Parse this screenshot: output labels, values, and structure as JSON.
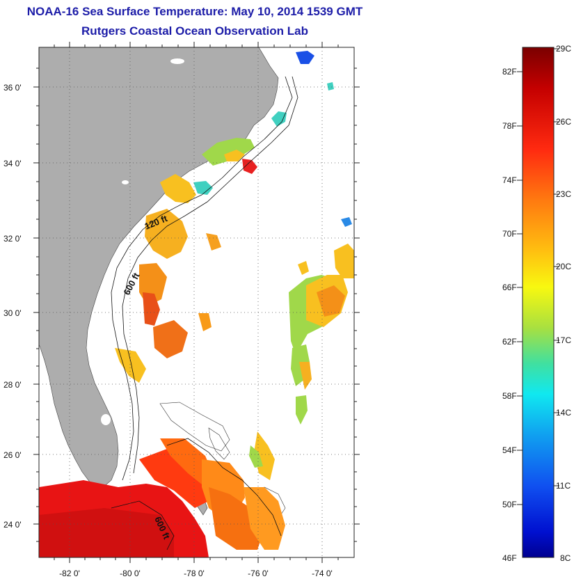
{
  "header": {
    "title": "NOAA-16 Sea Surface Temperature:  May 10, 2014 1539 GMT",
    "subtitle": "Rutgers Coastal Ocean Observation Lab"
  },
  "map": {
    "lat_labels": [
      "36 0'",
      "34 0'",
      "32 0'",
      "30 0'",
      "28 0'",
      "26 0'",
      "24 0'"
    ],
    "lon_labels": [
      "-82 0'",
      "-80 0'",
      "-78 0'",
      "-76 0'",
      "-74 0'"
    ],
    "isobath_labels": [
      "120 ft",
      "600 ft",
      "600 ft"
    ],
    "colors": {
      "land": "#adadad",
      "ocean": "#ffffff",
      "warm": "#e01010",
      "orange": "#f08a18",
      "yellow": "#f6d520",
      "green": "#9ad645",
      "cyan": "#3ad6c8",
      "blue": "#1a50e6"
    }
  },
  "colorbar": {
    "fahrenheit": [
      "82F",
      "78F",
      "74F",
      "70F",
      "66F",
      "62F",
      "58F",
      "54F",
      "50F",
      "46F"
    ],
    "celsius": [
      "29C",
      "26C",
      "23C",
      "20C",
      "17C",
      "14C",
      "11C",
      "8C"
    ]
  }
}
